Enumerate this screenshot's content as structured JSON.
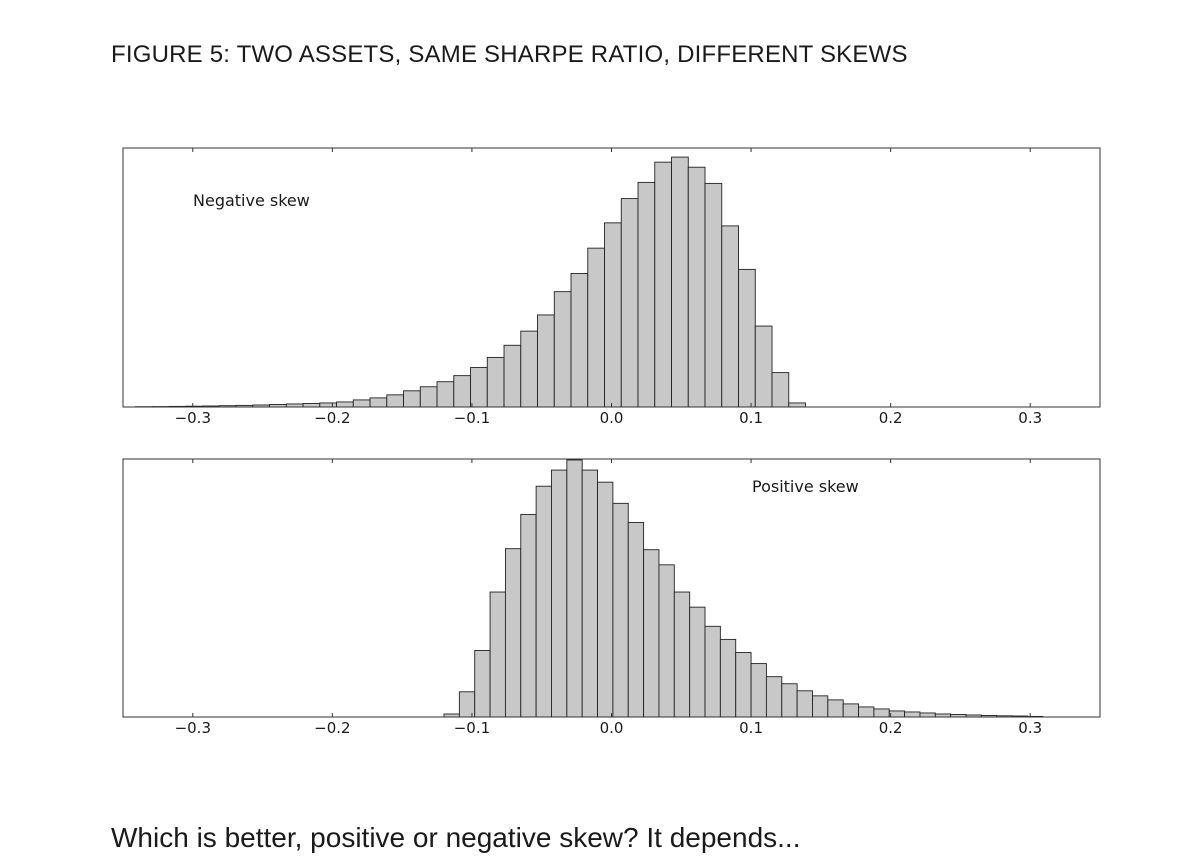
{
  "figure_title": "FIGURE 5: TWO ASSETS, SAME SHARPE RATIO, DIFFERENT SKEWS",
  "caption": "Which is better, positive or negative skew? It depends...",
  "colors": {
    "bar_fill": "#c8c8c8",
    "bar_stroke": "#222222",
    "axis": "#333333",
    "text": "#1a1a1a"
  },
  "chart_data": [
    {
      "type": "bar",
      "title": "",
      "annotation": "Negative skew",
      "annotation_position": "top-left",
      "xlabel": "",
      "ylabel": "",
      "xlim": [
        -0.35,
        0.35
      ],
      "ylim": [
        0,
        255
      ],
      "bin_width": 0.012,
      "grid": false,
      "x_ticks": [
        -0.3,
        -0.2,
        -0.1,
        0.0,
        0.1,
        0.2,
        0.3
      ],
      "x_tick_labels": [
        "−0.3",
        "−0.2",
        "−0.1",
        "0.0",
        "0.1",
        "0.2",
        "0.3"
      ],
      "bins": [
        {
          "x": -0.335,
          "value": 0.3
        },
        {
          "x": -0.323,
          "value": 0.4
        },
        {
          "x": -0.311,
          "value": 0.6
        },
        {
          "x": -0.299,
          "value": 0.8
        },
        {
          "x": -0.287,
          "value": 1
        },
        {
          "x": -0.275,
          "value": 1.3
        },
        {
          "x": -0.263,
          "value": 1.6
        },
        {
          "x": -0.251,
          "value": 2
        },
        {
          "x": -0.239,
          "value": 2.5
        },
        {
          "x": -0.227,
          "value": 3
        },
        {
          "x": -0.215,
          "value": 3.5
        },
        {
          "x": -0.203,
          "value": 4
        },
        {
          "x": -0.191,
          "value": 5
        },
        {
          "x": -0.179,
          "value": 7
        },
        {
          "x": -0.167,
          "value": 9
        },
        {
          "x": -0.155,
          "value": 12
        },
        {
          "x": -0.143,
          "value": 16
        },
        {
          "x": -0.131,
          "value": 20
        },
        {
          "x": -0.119,
          "value": 25
        },
        {
          "x": -0.107,
          "value": 31
        },
        {
          "x": -0.095,
          "value": 39
        },
        {
          "x": -0.083,
          "value": 49
        },
        {
          "x": -0.071,
          "value": 61
        },
        {
          "x": -0.059,
          "value": 75
        },
        {
          "x": -0.047,
          "value": 91
        },
        {
          "x": -0.035,
          "value": 114
        },
        {
          "x": -0.023,
          "value": 132
        },
        {
          "x": -0.011,
          "value": 157
        },
        {
          "x": 0.001,
          "value": 182
        },
        {
          "x": 0.013,
          "value": 206
        },
        {
          "x": 0.025,
          "value": 222
        },
        {
          "x": 0.037,
          "value": 242
        },
        {
          "x": 0.049,
          "value": 247
        },
        {
          "x": 0.061,
          "value": 237
        },
        {
          "x": 0.073,
          "value": 221
        },
        {
          "x": 0.085,
          "value": 179
        },
        {
          "x": 0.097,
          "value": 136
        },
        {
          "x": 0.109,
          "value": 80
        },
        {
          "x": 0.121,
          "value": 34
        },
        {
          "x": 0.133,
          "value": 4
        }
      ]
    },
    {
      "type": "bar",
      "title": "",
      "annotation": "Positive skew",
      "annotation_position": "top-right",
      "xlabel": "",
      "ylabel": "",
      "xlim": [
        -0.35,
        0.35
      ],
      "ylim": [
        0,
        255
      ],
      "bin_width": 0.011,
      "grid": false,
      "x_ticks": [
        -0.3,
        -0.2,
        -0.1,
        0.0,
        0.1,
        0.2,
        0.3
      ],
      "x_tick_labels": [
        "−0.3",
        "−0.2",
        "−0.1",
        "0.0",
        "0.1",
        "0.2",
        "0.3"
      ],
      "bins": [
        {
          "x": -0.1145,
          "value": 3
        },
        {
          "x": -0.1035,
          "value": 25
        },
        {
          "x": -0.0925,
          "value": 66
        },
        {
          "x": -0.0815,
          "value": 124
        },
        {
          "x": -0.0705,
          "value": 167
        },
        {
          "x": -0.0595,
          "value": 201
        },
        {
          "x": -0.0485,
          "value": 229
        },
        {
          "x": -0.0375,
          "value": 245
        },
        {
          "x": -0.0265,
          "value": 255
        },
        {
          "x": -0.0155,
          "value": 245
        },
        {
          "x": -0.0045,
          "value": 233
        },
        {
          "x": 0.0065,
          "value": 212
        },
        {
          "x": 0.0175,
          "value": 193
        },
        {
          "x": 0.0285,
          "value": 166
        },
        {
          "x": 0.0395,
          "value": 151
        },
        {
          "x": 0.0505,
          "value": 124
        },
        {
          "x": 0.0615,
          "value": 109
        },
        {
          "x": 0.0725,
          "value": 90
        },
        {
          "x": 0.0835,
          "value": 77
        },
        {
          "x": 0.0945,
          "value": 64
        },
        {
          "x": 0.1055,
          "value": 53
        },
        {
          "x": 0.1165,
          "value": 40
        },
        {
          "x": 0.1275,
          "value": 33
        },
        {
          "x": 0.1385,
          "value": 26
        },
        {
          "x": 0.1495,
          "value": 21
        },
        {
          "x": 0.1605,
          "value": 17
        },
        {
          "x": 0.1715,
          "value": 13
        },
        {
          "x": 0.1825,
          "value": 10
        },
        {
          "x": 0.1935,
          "value": 8
        },
        {
          "x": 0.2045,
          "value": 6
        },
        {
          "x": 0.2155,
          "value": 5
        },
        {
          "x": 0.2265,
          "value": 4
        },
        {
          "x": 0.2375,
          "value": 3
        },
        {
          "x": 0.2485,
          "value": 2.5
        },
        {
          "x": 0.2595,
          "value": 2
        },
        {
          "x": 0.2705,
          "value": 1.5
        },
        {
          "x": 0.2815,
          "value": 1.2
        },
        {
          "x": 0.2925,
          "value": 1
        },
        {
          "x": 0.3035,
          "value": 0.6
        }
      ]
    }
  ]
}
